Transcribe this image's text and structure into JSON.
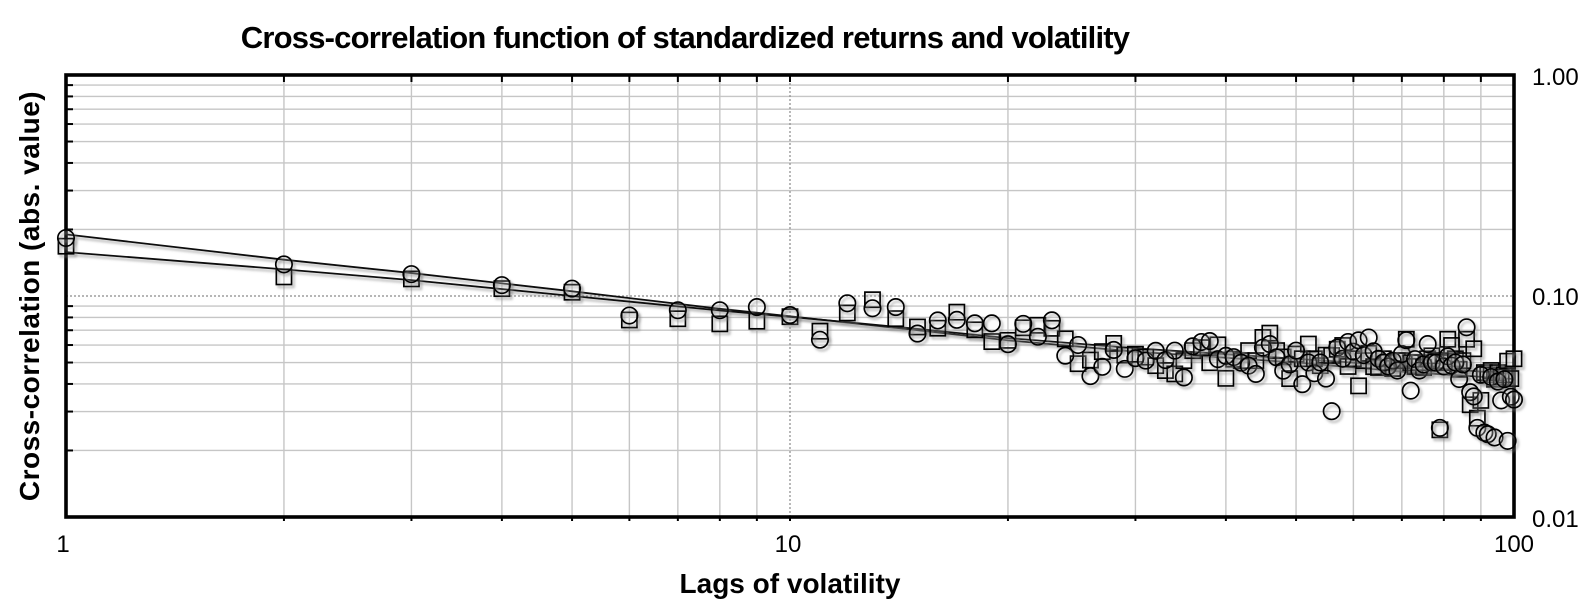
{
  "chart_data": {
    "type": "scatter",
    "title": "Cross-correlation function of standardized returns and volatility",
    "xlabel": "Lags of volatility",
    "ylabel": "Cross-correlation (abs. value)",
    "x_scale": "log",
    "y_scale": "log",
    "xlim": [
      1,
      100
    ],
    "ylim": [
      0.01,
      1.0
    ],
    "grid": "minor-log-gridlines-on",
    "legend": "none",
    "x_ticks": [
      "1",
      "10",
      "100"
    ],
    "y_ticks": [
      "1.00",
      "0.10",
      "0.01"
    ],
    "reference_lines": {
      "x_dotted_at": 10,
      "y_dotted_at": 0.1
    },
    "colors": {
      "marker_stroke": "#000000",
      "gridline": "#c6c6c6",
      "dotted_line": "#8a8a8a",
      "border": "#000000"
    },
    "series": [
      {
        "name": "circles",
        "marker": "circle",
        "lags": [
          1,
          2,
          3,
          4,
          5,
          6,
          7,
          8,
          9,
          10,
          11,
          12,
          13,
          14,
          15,
          16,
          17,
          18,
          19,
          20,
          21,
          22,
          23,
          24,
          25,
          26,
          27,
          28,
          29,
          30,
          31,
          32,
          33,
          34,
          35,
          36,
          37,
          38,
          39,
          40,
          41,
          42,
          43,
          44,
          45,
          46,
          47,
          48,
          49,
          50,
          51,
          52,
          53,
          54,
          55,
          56,
          57,
          58,
          59,
          60,
          61,
          62,
          63,
          64,
          65,
          66,
          67,
          68,
          69,
          70,
          71,
          72,
          73,
          74,
          75,
          76,
          77,
          78,
          79,
          80,
          81,
          82,
          83,
          84,
          85,
          86,
          87,
          88,
          89,
          90,
          91,
          92,
          93,
          94,
          95,
          96,
          97,
          98,
          99,
          100
        ],
        "values": [
          0.183,
          0.139,
          0.1256,
          0.112,
          0.108,
          0.0816,
          0.0862,
          0.0862,
          0.0891,
          0.082,
          0.0634,
          0.0927,
          0.088,
          0.0891,
          0.0676,
          0.0775,
          0.078,
          0.0752,
          0.0752,
          0.0605,
          0.0748,
          0.0654,
          0.0776,
          0.0537,
          0.06,
          0.0434,
          0.0478,
          0.057,
          0.0468,
          0.0523,
          0.051,
          0.0565,
          0.0513,
          0.0566,
          0.0428,
          0.0592,
          0.0619,
          0.0625,
          0.0518,
          0.0536,
          0.0529,
          0.0499,
          0.0484,
          0.0444,
          0.0584,
          0.0606,
          0.0528,
          0.0459,
          0.049,
          0.0566,
          0.0399,
          0.05,
          0.0447,
          0.05,
          0.0423,
          0.0301,
          0.0584,
          0.052,
          0.0619,
          0.056,
          0.063,
          0.054,
          0.0649,
          0.0562,
          0.052,
          0.05,
          0.048,
          0.051,
          0.046,
          0.0546,
          0.0631,
          0.0373,
          0.0518,
          0.046,
          0.049,
          0.0606,
          0.05,
          0.0499,
          0.0253,
          0.048,
          0.0533,
          0.0484,
          0.05,
          0.0421,
          0.049,
          0.0722,
          0.0367,
          0.0351,
          0.0253,
          0.044,
          0.0241,
          0.0237,
          0.043,
          0.0229,
          0.041,
          0.0337,
          0.042,
          0.0221,
          0.035,
          0.034
        ]
      },
      {
        "name": "squares",
        "marker": "square",
        "lags": [
          1,
          2,
          3,
          4,
          5,
          6,
          7,
          8,
          9,
          10,
          11,
          12,
          13,
          14,
          15,
          16,
          17,
          18,
          19,
          20,
          21,
          22,
          23,
          24,
          25,
          26,
          27,
          28,
          29,
          30,
          31,
          32,
          33,
          34,
          35,
          36,
          37,
          38,
          39,
          40,
          41,
          42,
          43,
          44,
          45,
          46,
          47,
          48,
          49,
          50,
          51,
          52,
          53,
          54,
          55,
          56,
          57,
          58,
          59,
          60,
          61,
          62,
          63,
          64,
          65,
          66,
          67,
          68,
          69,
          70,
          71,
          72,
          73,
          74,
          75,
          76,
          77,
          78,
          79,
          80,
          81,
          82,
          83,
          84,
          85,
          86,
          87,
          88,
          89,
          90,
          91,
          92,
          93,
          94,
          95,
          96,
          97,
          98,
          99,
          100
        ],
        "values": [
          0.168,
          0.122,
          0.1195,
          0.108,
          0.104,
          0.0779,
          0.0789,
          0.0748,
          0.0769,
          0.0806,
          0.0693,
          0.0838,
          0.0962,
          0.079,
          0.0724,
          0.0715,
          0.0845,
          0.0703,
          0.0622,
          0.063,
          0.0718,
          0.0737,
          0.0714,
          0.064,
          0.0494,
          0.0513,
          0.056,
          0.061,
          0.054,
          0.0545,
          0.0529,
          0.0484,
          0.046,
          0.0444,
          0.051,
          0.0566,
          0.0584,
          0.0499,
          0.0601,
          0.0424,
          0.0518,
          0.051,
          0.0566,
          0.051,
          0.0649,
          0.0679,
          0.0566,
          0.053,
          0.0423,
          0.0546,
          0.052,
          0.0606,
          0.052,
          0.0484,
          0.054,
          0.0538,
          0.0574,
          0.0597,
          0.048,
          0.052,
          0.0392,
          0.051,
          0.055,
          0.0479,
          0.0475,
          0.052,
          0.05,
          0.047,
          0.051,
          0.051,
          0.0637,
          0.0499,
          0.048,
          0.05,
          0.0475,
          0.052,
          0.0536,
          0.051,
          0.0248,
          0.05,
          0.0637,
          0.0597,
          0.052,
          0.0466,
          0.051,
          0.0637,
          0.0322,
          0.0577,
          0.028,
          0.0337,
          0.045,
          0.044,
          0.046,
          0.042,
          0.045,
          0.043,
          0.044,
          0.0507,
          0.0423,
          0.052
        ]
      },
      {
        "name": "fit-line-circles",
        "type": "line",
        "x": [
          1,
          2,
          3,
          5,
          8,
          10,
          15,
          20,
          30,
          50,
          70,
          100
        ],
        "y": [
          0.19,
          0.146,
          0.127,
          0.105,
          0.0875,
          0.081,
          0.07,
          0.063,
          0.056,
          0.05,
          0.0455,
          0.0421
        ]
      },
      {
        "name": "fit-line-squares",
        "type": "line",
        "x": [
          1,
          2,
          3,
          5,
          8,
          10,
          15,
          20,
          30,
          50,
          70,
          100
        ],
        "y": [
          0.158,
          0.132,
          0.118,
          0.1,
          0.086,
          0.0805,
          0.071,
          0.0645,
          0.058,
          0.052,
          0.0483,
          0.0444
        ]
      }
    ]
  }
}
